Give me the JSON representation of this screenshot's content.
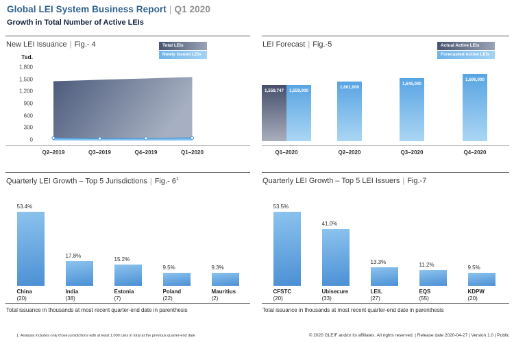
{
  "header": {
    "title": "Global LEI System Business Report",
    "separator": "|",
    "period": "Q1 2020",
    "subtitle": "Growth in Total Number of Active LEIs"
  },
  "footer": {
    "footnote": "1. Analysis includes only those jurisdictions with at least 1,000 LEIs in total at the previous quarter-end date",
    "copyright": "© 2020 GLEIF and/or its affiliates. All rights reserved.  |  Release date 2020-04-27  |  Version 1.0  |  Public"
  },
  "colors": {
    "title_blue": "#30618e",
    "muted_gray": "#8f8f8f",
    "subtitle_navy": "#0e1d39",
    "bar_light_top": "#58a4e2",
    "bar_light_bottom": "#abd6f4",
    "bar_dark_top": "#454f6b",
    "bar_dark_bottom": "#a9aebc",
    "growth_bar_top": "#8cc3ee",
    "growth_bar_bottom": "#4b90d4",
    "area_dark": "#4c5a7b",
    "area_light": "#a6b0c2",
    "strip_blue": "#7ec0f0",
    "strip_line": "#4a93cf"
  },
  "chart_data": [
    {
      "id": "fig4",
      "type": "area",
      "title": "New LEI Issuance",
      "fig": "Fig.- 4",
      "y_unit": "Tsd.",
      "ylim": [
        0,
        1800
      ],
      "y_tick_labels": [
        "1,800",
        "1,500",
        "1,200",
        "900",
        "600",
        "300",
        "0"
      ],
      "y_tick_values": [
        1800,
        1500,
        1200,
        900,
        600,
        300,
        0
      ],
      "categories": [
        "Q2–2019",
        "Q3–2019",
        "Q4–2019",
        "Q1–2020"
      ],
      "series": [
        {
          "name": "Total LEIs",
          "values": [
            1455,
            1490,
            1523,
            1559
          ]
        },
        {
          "name": "Newly Issued LEIs",
          "values": [
            60,
            47,
            52,
            64
          ]
        }
      ],
      "legend_position": "top-right",
      "grid": false
    },
    {
      "id": "fig5",
      "type": "bar",
      "title": "LEI Forecast",
      "fig": "Fig.-5",
      "categories": [
        "Q1–2020",
        "Q2–2020",
        "Q3–2020",
        "Q4–2020"
      ],
      "series": [
        {
          "name": "Actual Active LEIs",
          "values": [
            1558747,
            null,
            null,
            null
          ],
          "labels": [
            "1,558,747",
            "",
            "",
            ""
          ]
        },
        {
          "name": "Forecasted Active LEIs",
          "values": [
            1559000,
            1601000,
            1645000,
            1696000
          ],
          "labels": [
            "1,559,000",
            "1,601,000",
            "1,645,000",
            "1,696,000"
          ]
        }
      ],
      "legend_position": "top-right",
      "grid": false
    },
    {
      "id": "fig6",
      "type": "bar",
      "title": "Quarterly LEI Growth – Top 5 Jurisdictions",
      "fig": "Fig.- 6",
      "fig_superscript": "1",
      "categories": [
        "China",
        "India",
        "Estonia",
        "Poland",
        "Mauritius"
      ],
      "category_sublabels": [
        "(20)",
        "(38)",
        "(7)",
        "(22)",
        "(2)"
      ],
      "values": [
        53.4,
        17.8,
        15.2,
        9.5,
        9.3
      ],
      "value_labels": [
        "53.4%",
        "17.8%",
        "15.2%",
        "9.5%",
        "9.3%"
      ],
      "unit": "percent",
      "note": "Total issuance in thousands at most recent quarter-end date in parenthesis",
      "grid": false
    },
    {
      "id": "fig7",
      "type": "bar",
      "title": "Quarterly LEI Growth – Top 5 LEI Issuers",
      "fig": "Fig.-7",
      "categories": [
        "CFSTC",
        "Ubisecure",
        "LEIL",
        "EQS",
        "KDPW"
      ],
      "category_sublabels": [
        "(20)",
        "(33)",
        "(27)",
        "(55)",
        "(20)"
      ],
      "values": [
        53.5,
        41.0,
        13.3,
        11.2,
        9.5
      ],
      "value_labels": [
        "53.5%",
        "41.0%",
        "13.3%",
        "11.2%",
        "9.5%"
      ],
      "unit": "percent",
      "note": "Total issuance in thousands at most recent quarter-end date in parenthesis",
      "grid": false
    }
  ]
}
